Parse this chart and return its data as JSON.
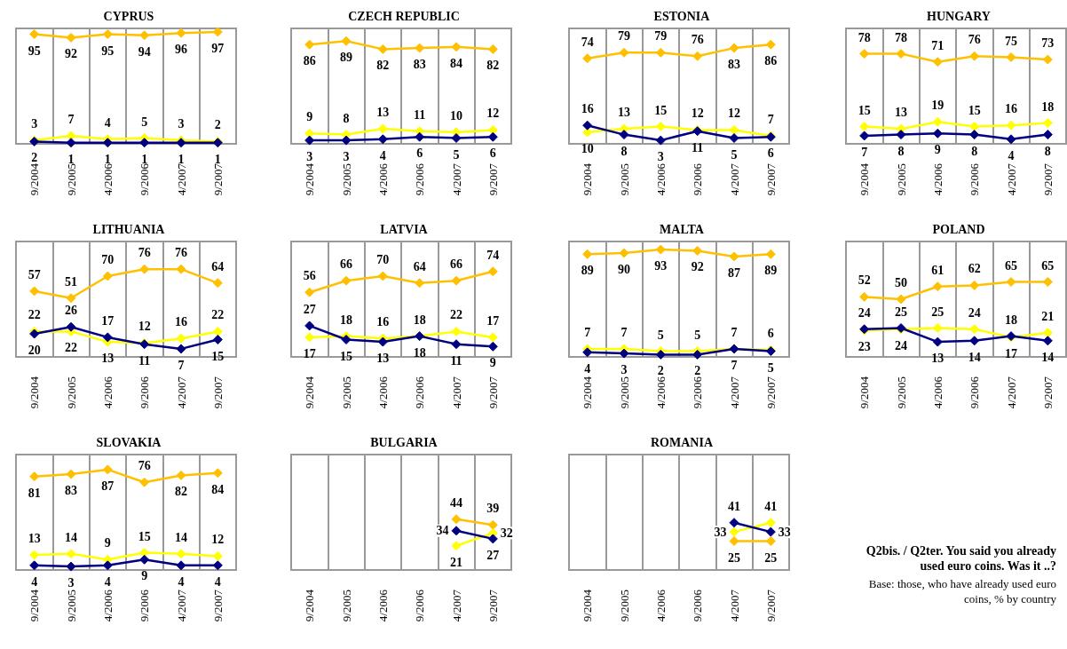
{
  "chart_data": [
    {
      "type": "line",
      "title": "CYPRUS",
      "categories": [
        "9/2004",
        "9/2005",
        "4/2006",
        "9/2006",
        "4/2007",
        "9/2007"
      ],
      "ylim": [
        0,
        100
      ],
      "tick_labels": "x",
      "grid": "x",
      "marker": "diamond",
      "data_labels": true,
      "series": [
        {
          "color": "#ffc000",
          "values": [
            95,
            92,
            95,
            94,
            96,
            97
          ]
        },
        {
          "color": "#ffff00",
          "values": [
            3,
            7,
            4,
            5,
            3,
            2
          ]
        },
        {
          "color": "#000080",
          "values": [
            2,
            1,
            1,
            1,
            1,
            1
          ]
        }
      ]
    },
    {
      "type": "line",
      "title": "CZECH REPUBLIC",
      "categories": [
        "9/2004",
        "9/2005",
        "4/2006",
        "9/2006",
        "4/2007",
        "9/2007"
      ],
      "ylim": [
        0,
        100
      ],
      "tick_labels": "x",
      "grid": "x",
      "marker": "diamond",
      "data_labels": true,
      "series": [
        {
          "color": "#ffc000",
          "values": [
            86,
            89,
            82,
            83,
            84,
            82
          ]
        },
        {
          "color": "#ffff00",
          "values": [
            9,
            8,
            13,
            11,
            10,
            12
          ]
        },
        {
          "color": "#000080",
          "values": [
            3,
            3,
            4,
            6,
            5,
            6
          ]
        }
      ]
    },
    {
      "type": "line",
      "title": "ESTONIA",
      "categories": [
        "9/2004",
        "9/2005",
        "4/2006",
        "9/2006",
        "4/2007",
        "9/2007"
      ],
      "ylim": [
        0,
        100
      ],
      "tick_labels": "x",
      "grid": "x",
      "marker": "diamond",
      "data_labels": true,
      "series": [
        {
          "color": "#ffc000",
          "values": [
            74,
            79,
            79,
            76,
            83,
            86
          ]
        },
        {
          "color": "#ffff00",
          "values": [
            10,
            13,
            15,
            12,
            12,
            7
          ]
        },
        {
          "color": "#000080",
          "values": [
            16,
            8,
            3,
            11,
            5,
            6
          ]
        }
      ]
    },
    {
      "type": "line",
      "title": "HUNGARY",
      "categories": [
        "9/2004",
        "9/2005",
        "4/2006",
        "9/2006",
        "4/2007",
        "9/2007"
      ],
      "ylim": [
        0,
        100
      ],
      "tick_labels": "x",
      "grid": "x",
      "marker": "diamond",
      "data_labels": true,
      "series": [
        {
          "color": "#ffc000",
          "values": [
            78,
            78,
            71,
            76,
            75,
            73
          ]
        },
        {
          "color": "#ffff00",
          "values": [
            15,
            13,
            19,
            15,
            16,
            18
          ]
        },
        {
          "color": "#000080",
          "values": [
            7,
            8,
            9,
            8,
            4,
            8
          ]
        }
      ]
    },
    {
      "type": "line",
      "title": "LITHUANIA",
      "categories": [
        "9/2004",
        "9/2005",
        "4/2006",
        "9/2006",
        "4/2007",
        "9/2007"
      ],
      "ylim": [
        0,
        100
      ],
      "tick_labels": "x",
      "grid": "x",
      "marker": "diamond",
      "data_labels": true,
      "series": [
        {
          "color": "#ffc000",
          "values": [
            57,
            51,
            70,
            76,
            76,
            64
          ]
        },
        {
          "color": "#ffff00",
          "values": [
            22,
            22,
            13,
            12,
            16,
            22
          ]
        },
        {
          "color": "#000080",
          "values": [
            20,
            26,
            17,
            11,
            7,
            15
          ]
        }
      ]
    },
    {
      "type": "line",
      "title": "LATVIA",
      "categories": [
        "9/2004",
        "9/2005",
        "4/2006",
        "9/2006",
        "4/2007",
        "9/2007"
      ],
      "ylim": [
        0,
        100
      ],
      "tick_labels": "x",
      "grid": "x",
      "marker": "diamond",
      "data_labels": true,
      "series": [
        {
          "color": "#ffc000",
          "values": [
            56,
            66,
            70,
            64,
            66,
            74
          ]
        },
        {
          "color": "#ffff00",
          "values": [
            17,
            18,
            16,
            18,
            22,
            17
          ]
        },
        {
          "color": "#000080",
          "values": [
            27,
            15,
            13,
            18,
            11,
            9
          ]
        }
      ]
    },
    {
      "type": "line",
      "title": "MALTA",
      "categories": [
        "9/2004",
        "9/2005",
        "4/2006",
        "9/2006",
        "4/2007",
        "9/2007"
      ],
      "ylim": [
        0,
        100
      ],
      "tick_labels": "x",
      "grid": "x",
      "marker": "diamond",
      "data_labels": true,
      "series": [
        {
          "color": "#ffc000",
          "values": [
            89,
            90,
            93,
            92,
            87,
            89
          ]
        },
        {
          "color": "#ffff00",
          "values": [
            7,
            7,
            5,
            5,
            7,
            6
          ]
        },
        {
          "color": "#000080",
          "values": [
            4,
            3,
            2,
            2,
            7,
            5
          ]
        }
      ]
    },
    {
      "type": "line",
      "title": "POLAND",
      "categories": [
        "9/2004",
        "9/2005",
        "4/2006",
        "9/2006",
        "4/2007",
        "9/2007"
      ],
      "ylim": [
        0,
        100
      ],
      "tick_labels": "x",
      "grid": "x",
      "marker": "diamond",
      "data_labels": true,
      "series": [
        {
          "color": "#ffc000",
          "values": [
            52,
            50,
            61,
            62,
            65,
            65
          ]
        },
        {
          "color": "#ffff00",
          "values": [
            23,
            24,
            25,
            24,
            17,
            21
          ]
        },
        {
          "color": "#000080",
          "values": [
            24,
            25,
            13,
            14,
            18,
            14
          ]
        }
      ]
    },
    {
      "type": "line",
      "title": "SLOVAKIA",
      "categories": [
        "9/2004",
        "9/2005",
        "4/2006",
        "9/2006",
        "4/2007",
        "9/2007"
      ],
      "ylim": [
        0,
        100
      ],
      "tick_labels": "x",
      "grid": "x",
      "marker": "diamond",
      "data_labels": true,
      "series": [
        {
          "color": "#ffc000",
          "values": [
            81,
            83,
            87,
            76,
            82,
            84
          ]
        },
        {
          "color": "#ffff00",
          "values": [
            13,
            14,
            9,
            15,
            14,
            12
          ]
        },
        {
          "color": "#000080",
          "values": [
            4,
            3,
            4,
            9,
            4,
            4
          ]
        }
      ]
    },
    {
      "type": "line",
      "title": "BULGARIA",
      "categories": [
        "9/2004",
        "9/2005",
        "4/2006",
        "9/2006",
        "4/2007",
        "9/2007"
      ],
      "ylim": [
        0,
        100
      ],
      "tick_labels": "x",
      "grid": "x",
      "marker": "diamond",
      "data_labels": true,
      "series": [
        {
          "color": "#ffc000",
          "values": [
            null,
            null,
            null,
            null,
            44,
            39
          ]
        },
        {
          "color": "#ffff00",
          "values": [
            null,
            null,
            null,
            null,
            21,
            32
          ]
        },
        {
          "color": "#000080",
          "values": [
            null,
            null,
            null,
            null,
            34,
            27
          ]
        }
      ]
    },
    {
      "type": "line",
      "title": "ROMANIA",
      "categories": [
        "9/2004",
        "9/2005",
        "4/2006",
        "9/2006",
        "4/2007",
        "9/2007"
      ],
      "ylim": [
        0,
        100
      ],
      "tick_labels": "x",
      "grid": "x",
      "marker": "diamond",
      "data_labels": true,
      "series": [
        {
          "color": "#ffc000",
          "values": [
            null,
            null,
            null,
            null,
            25,
            25
          ]
        },
        {
          "color": "#ffff00",
          "values": [
            null,
            null,
            null,
            null,
            33,
            41
          ]
        },
        {
          "color": "#000080",
          "values": [
            null,
            null,
            null,
            null,
            41,
            33
          ]
        }
      ]
    },
    {
      "type": "other",
      "annotations": [
        "Q2bis. / Q2ter.   You said you already used euro coins. Was it ..?",
        "Base: those, who have already used euro coins, % by country"
      ]
    }
  ]
}
